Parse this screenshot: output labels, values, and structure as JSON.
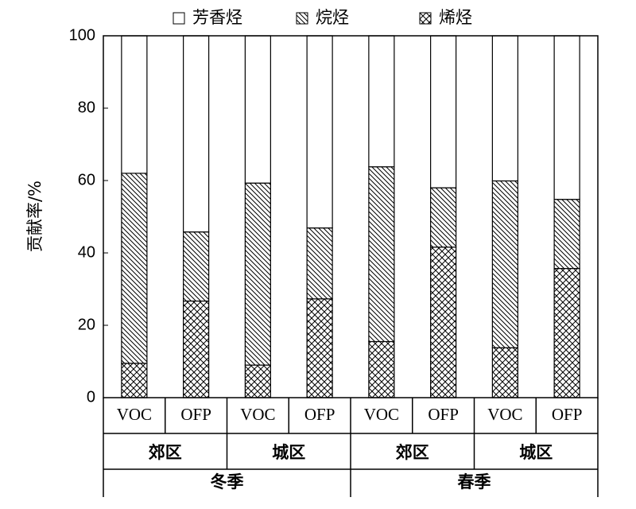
{
  "chart_data": {
    "type": "stacked_bar",
    "y_label": "贡献率/%",
    "categories": [
      "VOC",
      "OFP",
      "VOC",
      "OFP",
      "VOC",
      "OFP",
      "VOC",
      "OFP"
    ],
    "x_groups": [
      "郊区",
      "城区",
      "郊区",
      "城区"
    ],
    "x_supergroups": [
      "冬季",
      "春季"
    ],
    "series": [
      {
        "name": "芳香烃",
        "pattern": "none",
        "values": [
          38,
          54.2,
          40.7,
          53.1,
          36.2,
          42,
          40.1,
          45.2
        ]
      },
      {
        "name": "烷烃",
        "pattern": "diagonal",
        "values": [
          52.5,
          19.1,
          50.3,
          19.6,
          48.3,
          16.4,
          46.1,
          19.1
        ]
      },
      {
        "name": "烯烃",
        "pattern": "crosshatch",
        "values": [
          9.5,
          26.7,
          9,
          27.3,
          15.5,
          41.6,
          13.8,
          35.7
        ]
      }
    ],
    "ylim": [
      0,
      100
    ],
    "yticks": [
      0,
      20,
      40,
      60,
      80,
      100
    ]
  }
}
